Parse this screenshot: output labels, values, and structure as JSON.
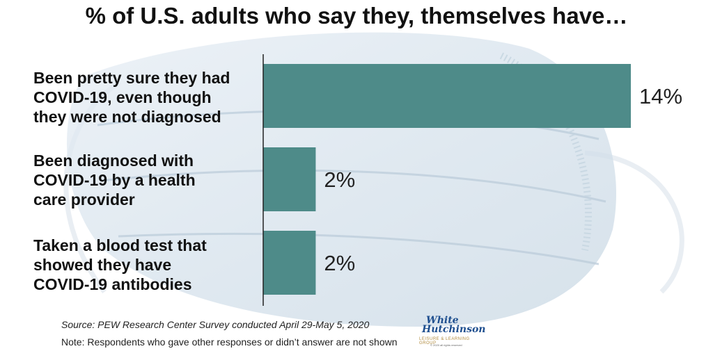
{
  "chart_data": {
    "type": "bar",
    "orientation": "horizontal",
    "title": "% of U.S. adults who say they, themselves have…",
    "categories": [
      "Been pretty sure they had COVID-19, even though they were not diagnosed",
      "Been diagnosed with COVID-19 by a health care provider",
      "Taken a blood test that showed they have COVID-19 antibodies"
    ],
    "category_lines": [
      [
        "Been pretty sure they had",
        "COVID-19, even though",
        "they were not diagnosed"
      ],
      [
        "Been diagnosed with",
        "COVID-19 by a health",
        "care provider"
      ],
      [
        "Taken a blood test that",
        "showed they have",
        "COVID-19 antibodies"
      ]
    ],
    "values": [
      14,
      2,
      2
    ],
    "value_labels": [
      "14%",
      "2%",
      "2%"
    ],
    "xlim": [
      0,
      14
    ],
    "bar_color": "#4e8b89",
    "grid": false
  },
  "footer": {
    "source": "Source: PEW Research Center Survey conducted April 29-May 5, 2020",
    "note": "Note: Respondents who gave other responses or didn’t answer are not shown"
  },
  "logo": {
    "line1": "White",
    "line2": "Hutchinson",
    "line3": "LEISURE & LEARNING GROUP",
    "line4": "© 2020 all rights reserved"
  },
  "icons": {
    "background": "surgical-mask-image"
  }
}
